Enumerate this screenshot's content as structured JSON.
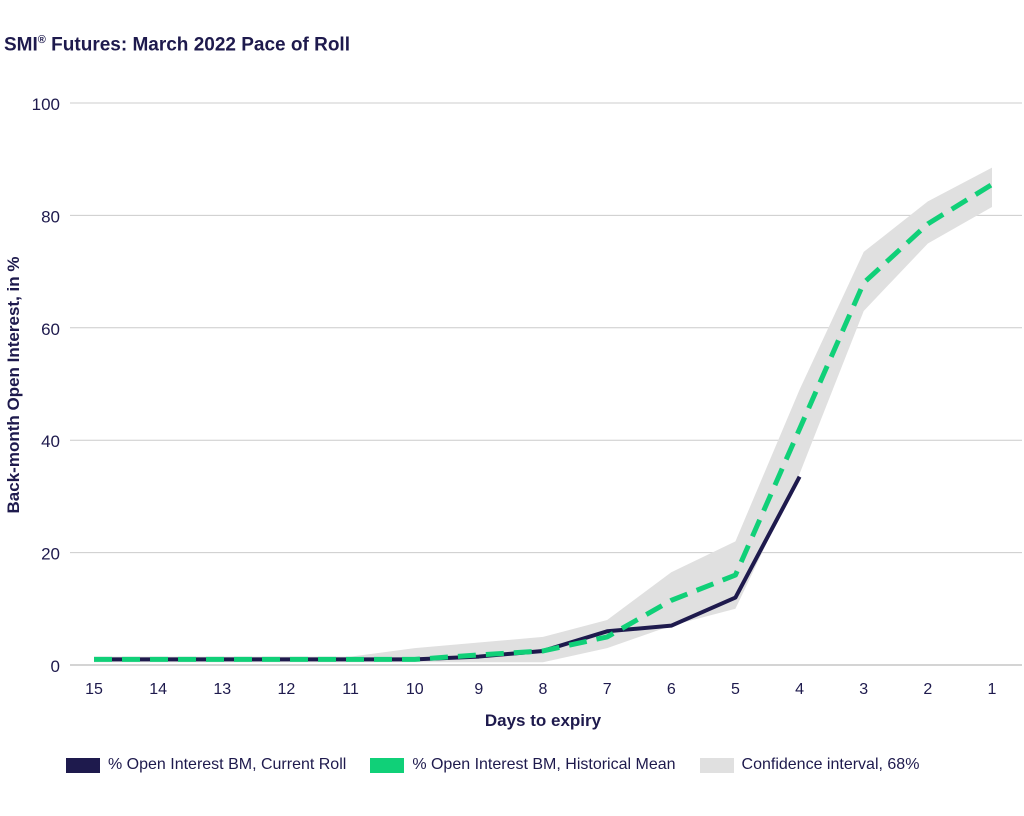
{
  "title_main": "SMI",
  "title_sup": "®",
  "title_rest": " Futures: March 2022 Pace of Roll",
  "colors": {
    "current": "#1e1a4d",
    "historical": "#10d078",
    "ci": "#e0e0e0",
    "grid": "#cccccc",
    "text": "#1e1a4d"
  },
  "chart_data": {
    "type": "line",
    "title": "SMI® Futures: March 2022 Pace of Roll",
    "xlabel": "Days to expiry",
    "ylabel": "Back-month Open Interest, in %",
    "categories": [
      "15",
      "14",
      "13",
      "12",
      "11",
      "10",
      "9",
      "8",
      "7",
      "6",
      "5",
      "4",
      "3",
      "2",
      "1"
    ],
    "ylim": [
      0,
      100
    ],
    "yticks": [
      0,
      20,
      40,
      60,
      80,
      100
    ],
    "grid": true,
    "series": [
      {
        "name": "% Open Interest BM, Current Roll",
        "style": "solid",
        "values": [
          1,
          1,
          1,
          1,
          1,
          1,
          1.5,
          2.5,
          6,
          7,
          12,
          33.5,
          null,
          null,
          null
        ]
      },
      {
        "name": "% Open Interest BM, Historical Mean",
        "style": "dashed",
        "values": [
          1,
          1,
          1,
          1,
          1,
          1,
          1.8,
          2.5,
          5,
          11.5,
          16,
          42,
          68,
          78.5,
          85.5
        ]
      }
    ],
    "confidence_interval": {
      "name": "Confidence interval, 68%",
      "lower": [
        0.5,
        0.5,
        0.5,
        0.5,
        0.5,
        0.5,
        0.5,
        0.5,
        3,
        7,
        10,
        34,
        63,
        75,
        81.5
      ],
      "upper": [
        1.5,
        1.5,
        1.5,
        1.5,
        1.5,
        3,
        4,
        5,
        8,
        16.5,
        22,
        49,
        73.5,
        82.5,
        88.5
      ]
    }
  }
}
